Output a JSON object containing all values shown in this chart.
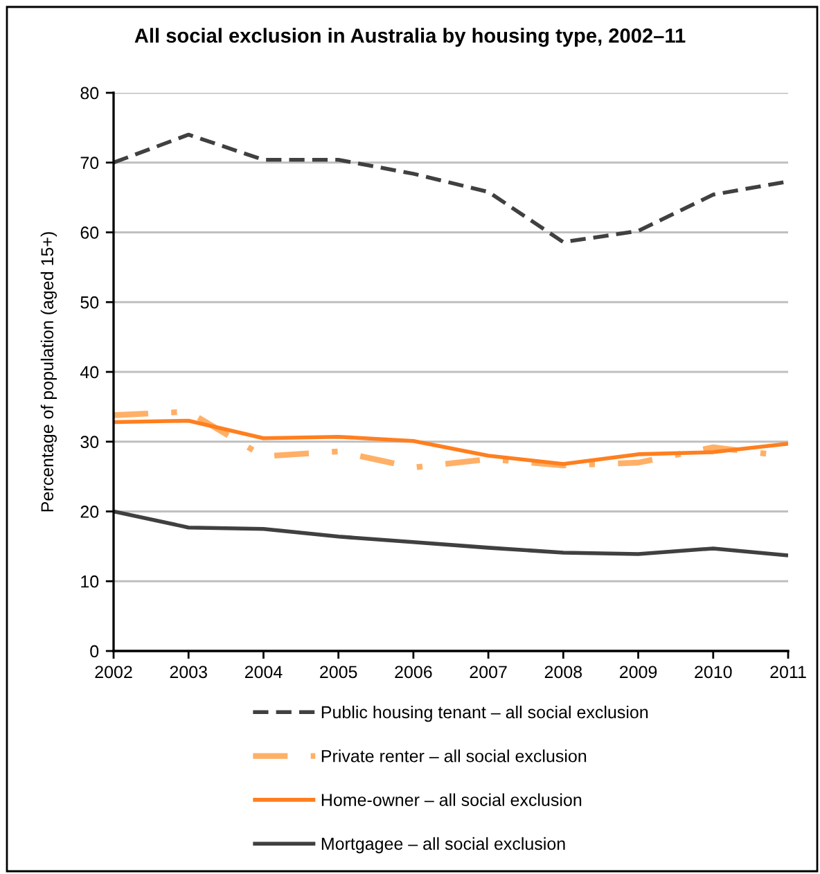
{
  "chart_data": {
    "type": "line",
    "title": "All social exclusion in Australia by housing type, 2002–11",
    "ylabel": "Percentage of population (aged 15+)",
    "x": [
      2002,
      2003,
      2004,
      2005,
      2006,
      2007,
      2008,
      2009,
      2010,
      2011
    ],
    "xlim": [
      2002,
      2011
    ],
    "xticks": [
      2002,
      2003,
      2004,
      2005,
      2006,
      2007,
      2008,
      2009,
      2010,
      2011
    ],
    "ylim": [
      0,
      80
    ],
    "yticks": [
      0,
      10,
      20,
      30,
      40,
      50,
      60,
      70,
      80
    ],
    "grid": "y",
    "legend": "bottom",
    "marker": "none",
    "series": [
      {
        "name": "Public housing tenant – all social exclusion",
        "color": "#404040",
        "line_style": "dashed",
        "values": [
          70.0,
          74.0,
          70.4,
          70.4,
          68.4,
          65.8,
          58.6,
          60.2,
          65.4,
          67.3
        ]
      },
      {
        "name": "Private renter – all social exclusion",
        "color": "#ffb066",
        "line_style": "dashdot",
        "values": [
          33.8,
          34.3,
          27.9,
          28.6,
          26.3,
          27.5,
          26.6,
          27.0,
          29.2,
          27.9
        ]
      },
      {
        "name": "Home-owner – all social exclusion",
        "color": "#ff7f1f",
        "line_style": "solid",
        "values": [
          32.8,
          33.0,
          30.5,
          30.7,
          30.1,
          28.0,
          26.8,
          28.2,
          28.5,
          29.7
        ]
      },
      {
        "name": "Mortgagee – all social exclusion",
        "color": "#404040",
        "line_style": "solid",
        "values": [
          20.0,
          17.7,
          17.5,
          16.4,
          15.6,
          14.8,
          14.1,
          13.9,
          14.7,
          13.7
        ]
      }
    ]
  }
}
